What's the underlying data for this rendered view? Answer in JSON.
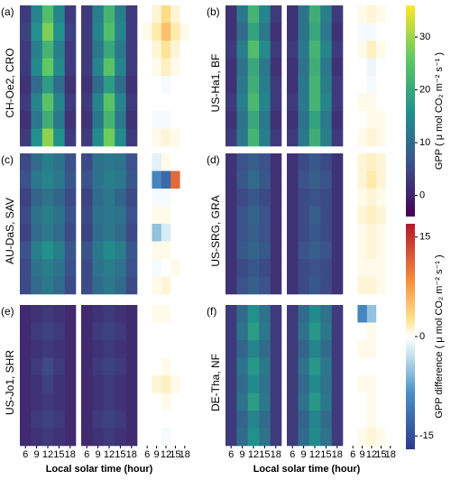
{
  "chart_data": {
    "type": "heatmap",
    "xlabel": "Local solar time (hour)",
    "x": [
      6,
      9,
      12,
      15,
      18
    ],
    "xlim": [
      4.5,
      19.5
    ],
    "xticks": [
      6,
      9,
      12,
      15,
      18
    ],
    "colorbar": {
      "label": "GPP ( μ mol CO₂ m⁻² s⁻¹ )",
      "lim": [
        -4,
        36
      ],
      "ticks": [
        0,
        10,
        20,
        30
      ]
    },
    "diff_colorbar": {
      "label": "GPP difference ( μ mol CO₂ m⁻² s⁻¹ )",
      "lim": [
        -17,
        17
      ],
      "ticks": [
        -15,
        0,
        15
      ]
    },
    "panels": [
      {
        "label": "(a)",
        "ylabel": "CH-Oe2, CRO",
        "observed": [
          [
            3,
            14,
            24,
            14,
            3
          ],
          [
            4,
            16,
            28,
            16,
            4
          ],
          [
            3,
            13,
            22,
            13,
            3
          ],
          [
            3,
            15,
            26,
            15,
            3
          ],
          [
            2,
            10,
            18,
            10,
            2
          ],
          [
            3,
            14,
            25,
            14,
            3
          ],
          [
            2,
            12,
            21,
            12,
            2
          ],
          [
            3,
            16,
            29,
            16,
            3
          ]
        ],
        "predicted": [
          [
            3,
            13,
            22,
            13,
            3
          ],
          [
            3,
            14,
            24,
            14,
            3
          ],
          [
            3,
            12,
            20,
            12,
            3
          ],
          [
            3,
            14,
            25,
            14,
            3
          ],
          [
            2,
            10,
            18,
            10,
            2
          ],
          [
            3,
            14,
            25,
            14,
            3
          ],
          [
            2,
            12,
            22,
            12,
            2
          ],
          [
            3,
            15,
            27,
            15,
            3
          ]
        ],
        "difference": [
          [
            0,
            2,
            6,
            2,
            0
          ],
          [
            1,
            4,
            8,
            4,
            1
          ],
          [
            0,
            2,
            5,
            2,
            0
          ],
          [
            0,
            1,
            3,
            1,
            0
          ],
          [
            0,
            0,
            -1,
            0,
            0
          ],
          [
            0,
            0,
            0,
            0,
            0
          ],
          [
            0,
            -1,
            -1,
            0,
            0
          ],
          [
            0,
            1,
            2,
            1,
            0
          ]
        ]
      },
      {
        "label": "(b)",
        "ylabel": "US-Ha1, BF",
        "observed": [
          [
            2,
            12,
            22,
            14,
            3
          ],
          [
            2,
            10,
            19,
            12,
            2
          ],
          [
            3,
            13,
            24,
            15,
            3
          ],
          [
            2,
            11,
            20,
            12,
            2
          ],
          [
            2,
            12,
            21,
            13,
            3
          ],
          [
            3,
            13,
            23,
            14,
            3
          ],
          [
            2,
            11,
            20,
            12,
            2
          ],
          [
            3,
            12,
            22,
            13,
            3
          ]
        ],
        "predicted": [
          [
            2,
            11,
            21,
            13,
            3
          ],
          [
            2,
            11,
            20,
            12,
            2
          ],
          [
            3,
            12,
            22,
            14,
            3
          ],
          [
            2,
            11,
            21,
            12,
            2
          ],
          [
            2,
            12,
            22,
            13,
            3
          ],
          [
            3,
            12,
            22,
            14,
            3
          ],
          [
            2,
            11,
            19,
            12,
            2
          ],
          [
            3,
            12,
            21,
            13,
            3
          ]
        ],
        "difference": [
          [
            0,
            1,
            2,
            1,
            0
          ],
          [
            0,
            -1,
            -1,
            0,
            0
          ],
          [
            0,
            1,
            3,
            1,
            0
          ],
          [
            0,
            0,
            -2,
            0,
            0
          ],
          [
            0,
            0,
            -1,
            0,
            0
          ],
          [
            0,
            1,
            1,
            0,
            0
          ],
          [
            0,
            0,
            1,
            1,
            0
          ],
          [
            0,
            1,
            2,
            1,
            0
          ]
        ]
      },
      {
        "label": "(c)",
        "ylabel": "AU-DaS, SAV",
        "observed": [
          [
            5,
            10,
            13,
            11,
            6
          ],
          [
            6,
            12,
            14,
            12,
            7
          ],
          [
            4,
            9,
            11,
            9,
            5
          ],
          [
            5,
            11,
            13,
            11,
            6
          ],
          [
            4,
            10,
            12,
            10,
            5
          ],
          [
            6,
            13,
            16,
            13,
            7
          ],
          [
            5,
            11,
            13,
            11,
            6
          ],
          [
            5,
            10,
            12,
            10,
            5
          ]
        ],
        "predicted": [
          [
            5,
            11,
            12,
            11,
            6
          ],
          [
            6,
            11,
            13,
            12,
            7
          ],
          [
            4,
            10,
            12,
            9,
            5
          ],
          [
            5,
            11,
            12,
            11,
            6
          ],
          [
            4,
            10,
            12,
            10,
            5
          ],
          [
            6,
            12,
            15,
            13,
            7
          ],
          [
            5,
            11,
            13,
            11,
            6
          ],
          [
            5,
            10,
            12,
            10,
            5
          ]
        ],
        "difference": [
          [
            0,
            -3,
            1,
            0,
            0
          ],
          [
            0,
            -12,
            -14,
            13,
            0
          ],
          [
            0,
            -1,
            -1,
            0,
            0
          ],
          [
            0,
            1,
            1,
            0,
            0
          ],
          [
            0,
            -8,
            -4,
            0,
            0
          ],
          [
            0,
            1,
            1,
            0,
            0
          ],
          [
            0,
            -1,
            0,
            1,
            0
          ],
          [
            0,
            1,
            2,
            0,
            0
          ]
        ]
      },
      {
        "label": "(d)",
        "ylabel": "US-SRG, GRA",
        "observed": [
          [
            2,
            6,
            8,
            6,
            2
          ],
          [
            2,
            7,
            10,
            7,
            2
          ],
          [
            2,
            5,
            7,
            5,
            2
          ],
          [
            2,
            6,
            9,
            6,
            2
          ],
          [
            2,
            6,
            8,
            6,
            2
          ],
          [
            2,
            7,
            9,
            7,
            2
          ],
          [
            2,
            5,
            7,
            5,
            2
          ],
          [
            2,
            6,
            8,
            6,
            2
          ]
        ],
        "predicted": [
          [
            2,
            5,
            7,
            5,
            2
          ],
          [
            2,
            6,
            8,
            6,
            2
          ],
          [
            2,
            5,
            6,
            5,
            2
          ],
          [
            2,
            5,
            8,
            5,
            2
          ],
          [
            2,
            5,
            7,
            5,
            2
          ],
          [
            2,
            6,
            8,
            6,
            2
          ],
          [
            2,
            5,
            6,
            5,
            2
          ],
          [
            2,
            5,
            7,
            5,
            2
          ]
        ],
        "difference": [
          [
            0,
            2,
            3,
            2,
            0
          ],
          [
            0,
            2,
            4,
            2,
            0
          ],
          [
            0,
            1,
            2,
            1,
            0
          ],
          [
            0,
            2,
            3,
            2,
            0
          ],
          [
            0,
            1,
            2,
            1,
            0
          ],
          [
            0,
            1,
            2,
            1,
            0
          ],
          [
            0,
            1,
            1,
            1,
            0
          ],
          [
            0,
            2,
            2,
            1,
            0
          ]
        ]
      },
      {
        "label": "(e)",
        "ylabel": "US-Jo1, SHR",
        "observed": [
          [
            1,
            2,
            3,
            2,
            1
          ],
          [
            1,
            3,
            4,
            3,
            1
          ],
          [
            1,
            2,
            3,
            2,
            1
          ],
          [
            1,
            3,
            5,
            3,
            1
          ],
          [
            1,
            2,
            4,
            2,
            1
          ],
          [
            1,
            2,
            3,
            2,
            1
          ],
          [
            1,
            3,
            4,
            3,
            1
          ],
          [
            1,
            2,
            3,
            2,
            1
          ]
        ],
        "predicted": [
          [
            1,
            2,
            3,
            2,
            1
          ],
          [
            1,
            3,
            4,
            3,
            1
          ],
          [
            1,
            2,
            3,
            2,
            1
          ],
          [
            1,
            3,
            4,
            3,
            1
          ],
          [
            1,
            2,
            3,
            2,
            1
          ],
          [
            1,
            2,
            3,
            2,
            1
          ],
          [
            1,
            3,
            4,
            3,
            1
          ],
          [
            1,
            2,
            3,
            2,
            1
          ]
        ],
        "difference": [
          [
            0,
            1,
            1,
            0,
            0
          ],
          [
            0,
            0,
            0,
            0,
            0
          ],
          [
            0,
            0,
            0,
            0,
            0
          ],
          [
            0,
            0,
            1,
            0,
            0
          ],
          [
            0,
            2,
            3,
            1,
            0
          ],
          [
            0,
            0,
            1,
            0,
            0
          ],
          [
            0,
            0,
            0,
            0,
            0
          ],
          [
            0,
            0,
            -1,
            0,
            0
          ]
        ]
      },
      {
        "label": "(f)",
        "ylabel": "DE-Tha, NF",
        "observed": [
          [
            3,
            10,
            16,
            11,
            3
          ],
          [
            3,
            11,
            18,
            12,
            3
          ],
          [
            3,
            9,
            14,
            10,
            3
          ],
          [
            3,
            11,
            17,
            12,
            3
          ],
          [
            3,
            10,
            15,
            11,
            3
          ],
          [
            3,
            11,
            18,
            12,
            3
          ],
          [
            3,
            9,
            14,
            10,
            3
          ],
          [
            3,
            10,
            16,
            11,
            3
          ]
        ],
        "predicted": [
          [
            3,
            10,
            15,
            11,
            3
          ],
          [
            3,
            11,
            17,
            12,
            3
          ],
          [
            3,
            9,
            14,
            10,
            3
          ],
          [
            3,
            11,
            17,
            12,
            3
          ],
          [
            3,
            10,
            15,
            11,
            3
          ],
          [
            3,
            11,
            17,
            12,
            3
          ],
          [
            3,
            9,
            14,
            10,
            3
          ],
          [
            3,
            10,
            15,
            11,
            3
          ]
        ],
        "difference": [
          [
            0,
            -12,
            -8,
            0,
            0
          ],
          [
            0,
            0,
            1,
            0,
            0
          ],
          [
            0,
            1,
            1,
            0,
            0
          ],
          [
            0,
            0,
            0,
            0,
            0
          ],
          [
            0,
            1,
            1,
            0,
            0
          ],
          [
            0,
            0,
            1,
            0,
            0
          ],
          [
            0,
            0,
            1,
            0,
            0
          ],
          [
            0,
            1,
            2,
            1,
            0
          ]
        ]
      }
    ]
  }
}
